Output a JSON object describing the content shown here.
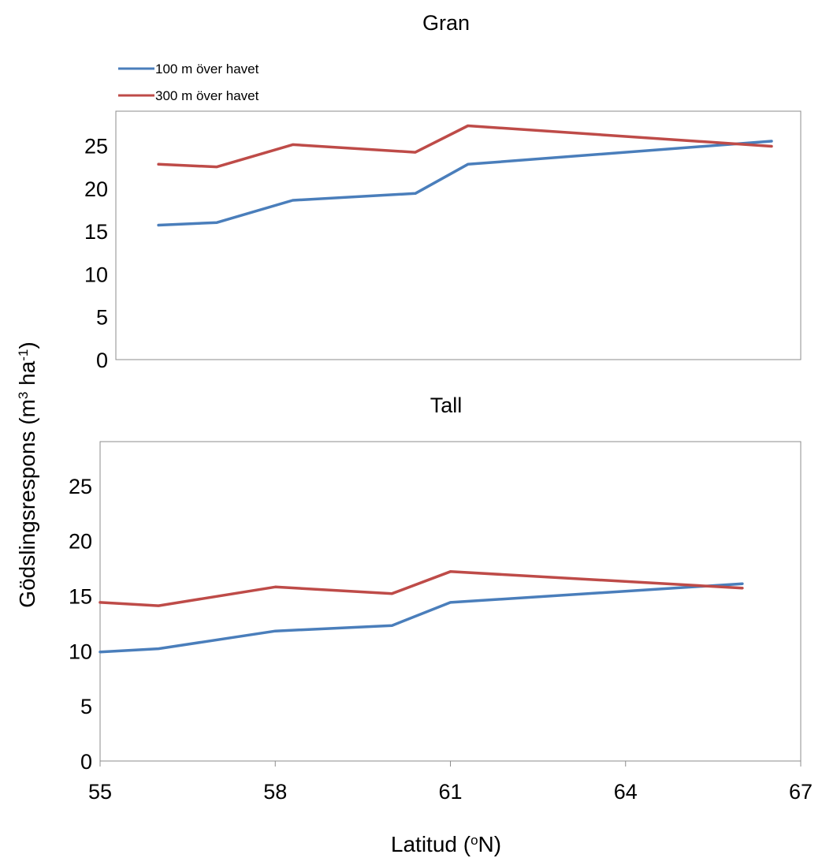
{
  "chart_data": [
    {
      "type": "line",
      "title": "Gran",
      "x": [
        56.0,
        57.0,
        58.3,
        60.4,
        61.3,
        66.5
      ],
      "series": [
        {
          "name": "100 m över havet",
          "color": "#4a7ebb",
          "values": [
            15.7,
            16.0,
            18.6,
            19.4,
            22.8,
            25.5
          ]
        },
        {
          "name": "300 m över havet",
          "color": "#be4b48",
          "values": [
            22.8,
            22.5,
            25.1,
            24.2,
            27.3,
            24.9
          ]
        }
      ],
      "yticks": [
        "0",
        "5",
        "10",
        "15",
        "20",
        "25"
      ],
      "ylim": [
        0,
        29
      ],
      "legend": "top-left"
    },
    {
      "type": "line",
      "title": "Tall",
      "x": [
        55.0,
        56.0,
        58.0,
        60.0,
        61.0,
        66.0
      ],
      "series": [
        {
          "name": "100 m över havet",
          "color": "#4a7ebb",
          "values": [
            9.9,
            10.2,
            11.8,
            12.3,
            14.4,
            16.1
          ]
        },
        {
          "name": "300 m över havet",
          "color": "#be4b48",
          "values": [
            14.4,
            14.1,
            15.8,
            15.2,
            17.2,
            15.7
          ]
        }
      ],
      "xticks": [
        "55",
        "58",
        "61",
        "64",
        "67"
      ],
      "yticks": [
        "0",
        "5",
        "10",
        "15",
        "20",
        "25"
      ],
      "xlim": [
        55,
        67
      ],
      "ylim": [
        0,
        29
      ]
    }
  ],
  "ylabel_main": "Gödslingsrespons (m",
  "ylabel_sup1": "3",
  "ylabel_mid": " ha",
  "ylabel_sup2": "-1",
  "ylabel_end": ")",
  "xlabel_main": "Latitud (",
  "xlabel_sup": "o",
  "xlabel_end": "N)"
}
